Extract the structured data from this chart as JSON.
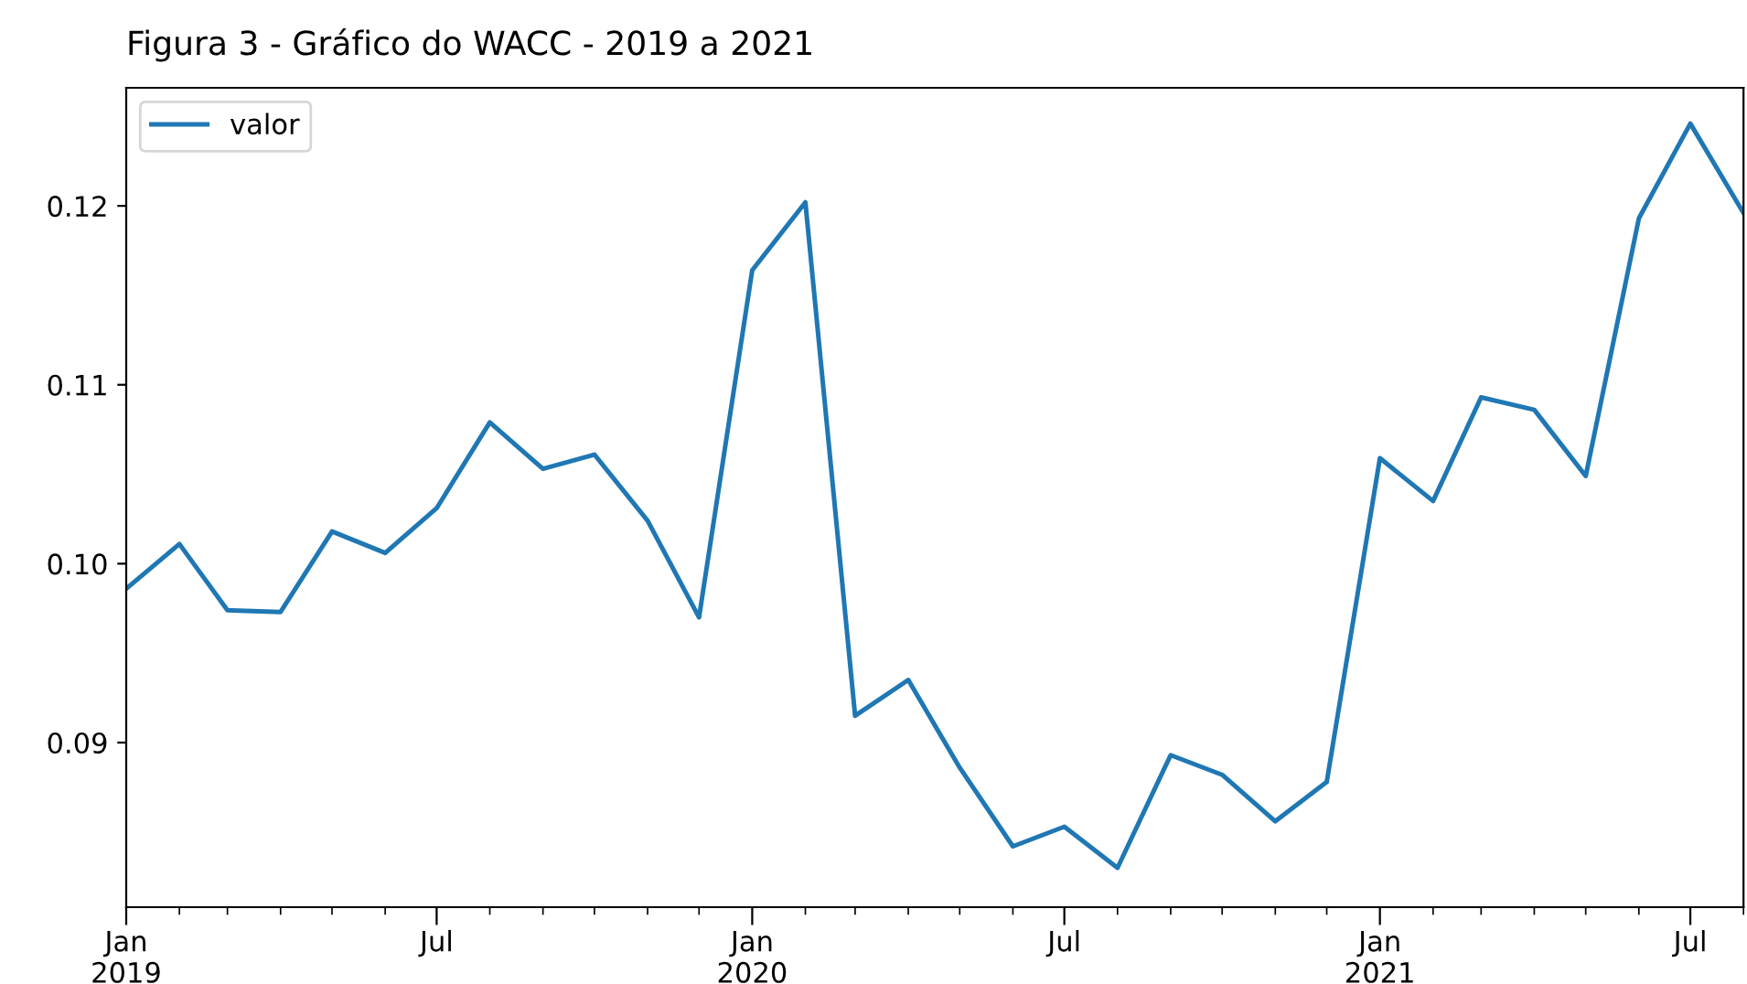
{
  "chart_data": {
    "type": "line",
    "title": "Figura 3 - Gráfico do WACC - 2019 a 2021",
    "x": [
      "2019-01",
      "2019-02",
      "2019-03",
      "2019-04",
      "2019-05",
      "2019-06",
      "2019-07",
      "2019-08",
      "2019-09",
      "2019-10",
      "2019-11",
      "2019-12",
      "2020-01",
      "2020-02",
      "2020-03",
      "2020-04",
      "2020-05",
      "2020-06",
      "2020-07",
      "2020-08",
      "2020-09",
      "2020-10",
      "2020-11",
      "2020-12",
      "2021-01",
      "2021-02",
      "2021-03",
      "2021-04",
      "2021-05",
      "2021-06",
      "2021-07",
      "2021-08"
    ],
    "series": [
      {
        "name": "valor",
        "color": "#1f77b4",
        "values": [
          0.0986,
          0.1011,
          0.0974,
          0.0973,
          0.1018,
          0.1006,
          0.1031,
          0.1079,
          0.1053,
          0.1061,
          0.1024,
          0.097,
          0.1164,
          0.1202,
          0.0915,
          0.0935,
          0.0886,
          0.0842,
          0.0853,
          0.083,
          0.0893,
          0.0882,
          0.0856,
          0.0878,
          0.1059,
          0.1035,
          0.1093,
          0.1086,
          0.1049,
          0.1193,
          0.1246,
          0.1196
        ]
      }
    ],
    "xlim": [
      "2019-01",
      "2021-08"
    ],
    "ylim": [
      0.0808,
      0.1266
    ],
    "yticks": [
      {
        "value": 0.09,
        "label": "0.09"
      },
      {
        "value": 0.1,
        "label": "0.10"
      },
      {
        "value": 0.11,
        "label": "0.11"
      },
      {
        "value": 0.12,
        "label": "0.12"
      }
    ],
    "xticks": [
      {
        "value": "2019-01",
        "label": "Jan\n2019"
      },
      {
        "value": "2019-07",
        "label": "Jul"
      },
      {
        "value": "2020-01",
        "label": "Jan\n2020"
      },
      {
        "value": "2020-07",
        "label": "Jul"
      },
      {
        "value": "2021-01",
        "label": "Jan\n2021"
      },
      {
        "value": "2021-07",
        "label": "Jul"
      }
    ],
    "legend": "top left",
    "grid": false,
    "line_style": "solid",
    "marker": "none"
  }
}
